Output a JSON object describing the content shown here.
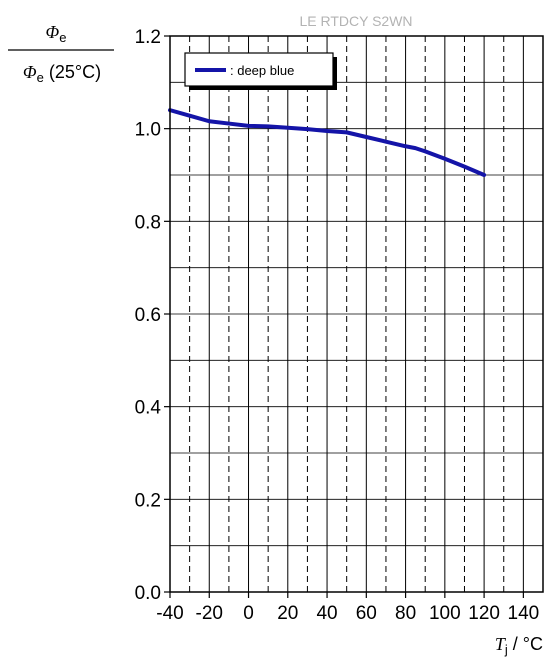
{
  "chart_data": {
    "type": "line",
    "title": "LE RTDCY S2WN",
    "ylabel": {
      "numerator_symbol": "Φ",
      "numerator_sub": "e",
      "denominator_symbol": "Φ",
      "denominator_sub": "e",
      "denominator_suffix": " (25°C)"
    },
    "xlabel": {
      "symbol": "T",
      "sub": "j",
      "unit": " / °C"
    },
    "xlim": [
      -40,
      150
    ],
    "ylim": [
      0.0,
      1.2
    ],
    "x_tick_labels": [
      "-40",
      "-20",
      "0",
      "20",
      "40",
      "60",
      "80",
      "100",
      "120",
      "140"
    ],
    "x_tick_values": [
      -40,
      -20,
      0,
      20,
      40,
      60,
      80,
      100,
      120,
      140
    ],
    "y_tick_labels": [
      "0.0",
      "0.2",
      "0.4",
      "0.6",
      "0.8",
      "1.0",
      "1.2"
    ],
    "y_tick_values": [
      0.0,
      0.2,
      0.4,
      0.6,
      0.8,
      1.0,
      1.2
    ],
    "grid": true,
    "legend_position": "top-left",
    "series": [
      {
        "name": ": deep blue",
        "color": "#1414a8",
        "x": [
          -40,
          -30,
          -20,
          -10,
          0,
          10,
          20,
          30,
          40,
          50,
          60,
          70,
          80,
          85,
          90,
          100,
          110,
          120
        ],
        "y": [
          1.04,
          1.028,
          1.016,
          1.011,
          1.006,
          1.005,
          1.002,
          0.999,
          0.995,
          0.992,
          0.982,
          0.972,
          0.962,
          0.958,
          0.951,
          0.935,
          0.918,
          0.9
        ]
      }
    ]
  }
}
